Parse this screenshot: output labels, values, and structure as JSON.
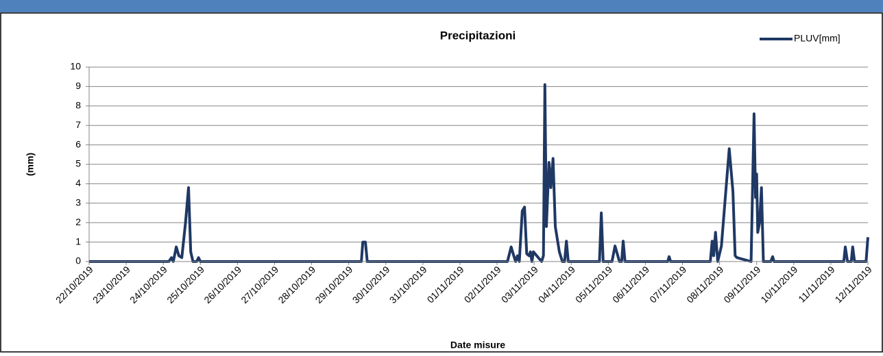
{
  "chart_data": {
    "type": "line",
    "title": "Precipitazioni",
    "x_label": "Date misure",
    "y_label": "(mm)",
    "x": [
      0,
      2.15,
      2.22,
      2.27,
      2.35,
      2.42,
      2.5,
      2.6,
      2.68,
      2.74,
      2.8,
      2.9,
      2.95,
      3.0,
      7.34,
      7.38,
      7.45,
      7.5,
      11.28,
      11.38,
      11.45,
      11.5,
      11.55,
      11.6,
      11.68,
      11.74,
      11.8,
      11.86,
      11.9,
      11.94,
      11.98,
      12.2,
      12.25,
      12.29,
      12.33,
      12.4,
      12.45,
      12.51,
      12.57,
      12.68,
      12.76,
      12.82,
      12.87,
      12.92,
      13.76,
      13.81,
      13.86,
      14.1,
      14.18,
      14.3,
      14.36,
      14.4,
      14.45,
      15.6,
      15.64,
      15.68,
      16.75,
      16.8,
      16.84,
      16.89,
      16.95,
      17.05,
      17.26,
      17.36,
      17.42,
      17.47,
      17.85,
      17.93,
      17.97,
      18.0,
      18.03,
      18.08,
      18.13,
      18.18,
      18.38,
      18.43,
      18.47,
      20.35,
      20.39,
      20.45,
      20.55,
      20.59,
      20.64,
      20.95,
      21.0
    ],
    "series": [
      {
        "name": "PLUV[mm]",
        "color": "#1f3864",
        "values": [
          0,
          0,
          0.2,
          0,
          0.75,
          0.3,
          0.2,
          2,
          3.8,
          0.5,
          0,
          0,
          0.2,
          0,
          0,
          1,
          1,
          0,
          0,
          0.75,
          0.3,
          0,
          0.3,
          0,
          2.6,
          2.8,
          0.4,
          0.3,
          0.5,
          0,
          0.5,
          0,
          0.3,
          9.1,
          1.8,
          5.1,
          3.8,
          5.3,
          1.8,
          0.5,
          0,
          0,
          1.05,
          0,
          0,
          2.5,
          0,
          0,
          0.8,
          0,
          0,
          1.05,
          0,
          0,
          0.25,
          0,
          0,
          1.05,
          0.3,
          1.5,
          0,
          0.8,
          5.8,
          3.6,
          0.3,
          0.2,
          0,
          7.6,
          3.3,
          4.5,
          1.5,
          2,
          3.8,
          0,
          0,
          0.25,
          0,
          0,
          0.75,
          0,
          0,
          0.75,
          0,
          0,
          1.25
        ]
      }
    ],
    "xlim": [
      0,
      21
    ],
    "xticks": [
      {
        "value": 0,
        "label": "22/10/2019"
      },
      {
        "value": 1,
        "label": "23/10/2019"
      },
      {
        "value": 2,
        "label": "24/10/2019"
      },
      {
        "value": 3,
        "label": "25/10/2019"
      },
      {
        "value": 4,
        "label": "26/10/2019"
      },
      {
        "value": 5,
        "label": "27/10/2019"
      },
      {
        "value": 6,
        "label": "28/10/2019"
      },
      {
        "value": 7,
        "label": "29/10/2019"
      },
      {
        "value": 8,
        "label": "30/10/2019"
      },
      {
        "value": 9,
        "label": "31/10/2019"
      },
      {
        "value": 10,
        "label": "01/11/2019"
      },
      {
        "value": 11,
        "label": "02/11/2019"
      },
      {
        "value": 12,
        "label": "03/11/2019"
      },
      {
        "value": 13,
        "label": "04/11/2019"
      },
      {
        "value": 14,
        "label": "05/11/2019"
      },
      {
        "value": 15,
        "label": "06/11/2019"
      },
      {
        "value": 16,
        "label": "07/11/2019"
      },
      {
        "value": 17,
        "label": "08/11/2019"
      },
      {
        "value": 18,
        "label": "09/11/2019"
      },
      {
        "value": 19,
        "label": "10/11/2019"
      },
      {
        "value": 20,
        "label": "11/11/2019"
      },
      {
        "value": 21,
        "label": "12/11/2019"
      }
    ],
    "ylim": [
      0,
      10
    ],
    "yticks": [
      0,
      1,
      2,
      3,
      4,
      5,
      6,
      7,
      8,
      9,
      10
    ],
    "grid": true,
    "legend": "top-right"
  }
}
